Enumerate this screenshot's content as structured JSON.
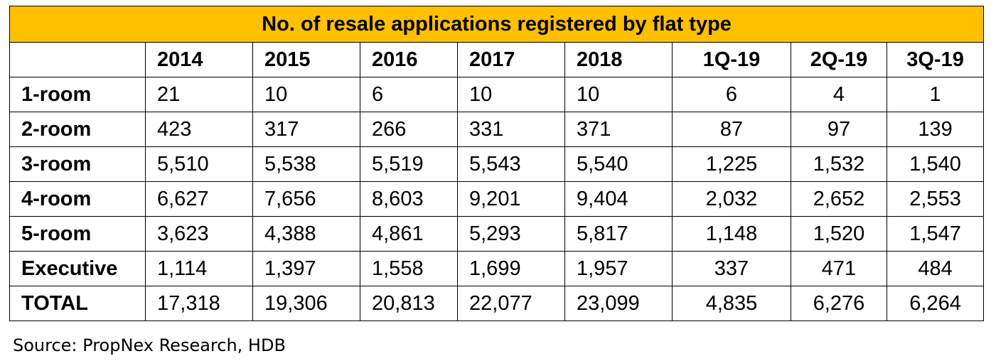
{
  "title": "No. of resale applications registered by flat type",
  "columns": [
    "2014",
    "2015",
    "2016",
    "2017",
    "2018",
    "1Q-19",
    "2Q-19",
    "3Q-19"
  ],
  "rows": [
    {
      "label": "1-room",
      "values": [
        "21",
        "10",
        "6",
        "10",
        "10",
        "6",
        "4",
        "1"
      ]
    },
    {
      "label": "2-room",
      "values": [
        "423",
        "317",
        "266",
        "331",
        "371",
        "87",
        "97",
        "139"
      ]
    },
    {
      "label": "3-room",
      "values": [
        "5,510",
        "5,538",
        "5,519",
        "5,543",
        "5,540",
        "1,225",
        "1,532",
        "1,540"
      ]
    },
    {
      "label": "4-room",
      "values": [
        "6,627",
        "7,656",
        "8,603",
        "9,201",
        "9,404",
        "2,032",
        "2,652",
        "2,553"
      ]
    },
    {
      "label": "5-room",
      "values": [
        "3,623",
        "4,388",
        "4,861",
        "5,293",
        "5,817",
        "1,148",
        "1,520",
        "1,547"
      ]
    },
    {
      "label": "Executive",
      "values": [
        "1,114",
        "1,397",
        "1,558",
        "1,699",
        "1,957",
        "337",
        "471",
        "484"
      ]
    },
    {
      "label": "TOTAL",
      "values": [
        "17,318",
        "19,306",
        "20,813",
        "22,077",
        "23,099",
        "4,835",
        "6,276",
        "6,264"
      ]
    }
  ],
  "source": "Source: PropNex Research, HDB",
  "colors": {
    "header_bg": "#ffc000",
    "border": "#000000"
  }
}
